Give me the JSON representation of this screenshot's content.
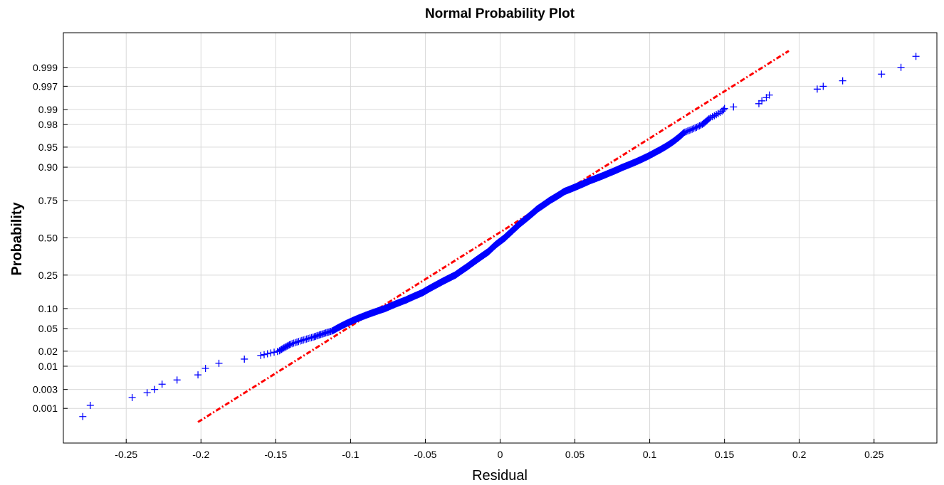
{
  "chart_data": {
    "type": "scatter",
    "title": "Normal Probability Plot",
    "xlabel": "Residual",
    "ylabel": "Probability",
    "xlim": [
      -0.292,
      0.292
    ],
    "ylim_probability": [
      0.0001,
      0.9999
    ],
    "grid": true,
    "y_scale": "normal-probability",
    "colors": {
      "data": "#0000ff",
      "reference_line": "#ff0000"
    },
    "marker": "+",
    "x_ticks": [
      {
        "value": -0.25,
        "label": "-0.25"
      },
      {
        "value": -0.2,
        "label": "-0.2"
      },
      {
        "value": -0.15,
        "label": "-0.15"
      },
      {
        "value": -0.1,
        "label": "-0.1"
      },
      {
        "value": -0.05,
        "label": "-0.05"
      },
      {
        "value": 0,
        "label": "0"
      },
      {
        "value": 0.05,
        "label": "0.05"
      },
      {
        "value": 0.1,
        "label": "0.1"
      },
      {
        "value": 0.15,
        "label": "0.15"
      },
      {
        "value": 0.2,
        "label": "0.2"
      },
      {
        "value": 0.25,
        "label": "0.25"
      }
    ],
    "y_ticks": [
      {
        "value": 0.001,
        "label": "0.001"
      },
      {
        "value": 0.003,
        "label": "0.003"
      },
      {
        "value": 0.01,
        "label": "0.01"
      },
      {
        "value": 0.02,
        "label": "0.02"
      },
      {
        "value": 0.05,
        "label": "0.05"
      },
      {
        "value": 0.1,
        "label": "0.10"
      },
      {
        "value": 0.25,
        "label": "0.25"
      },
      {
        "value": 0.5,
        "label": "0.50"
      },
      {
        "value": 0.75,
        "label": "0.75"
      },
      {
        "value": 0.9,
        "label": "0.90"
      },
      {
        "value": 0.95,
        "label": "0.95"
      },
      {
        "value": 0.98,
        "label": "0.98"
      },
      {
        "value": 0.99,
        "label": "0.99"
      },
      {
        "value": 0.997,
        "label": "0.997"
      },
      {
        "value": 0.999,
        "label": "0.999"
      }
    ],
    "reference_line": {
      "x": [
        -0.202,
        0.193
      ],
      "probability": [
        0.00042,
        0.99965
      ]
    },
    "series": [
      {
        "residual_quantile_anchors": [
          {
            "probability": 0.0006,
            "residual": -0.279
          },
          {
            "probability": 0.0012,
            "residual": -0.274
          },
          {
            "probability": 0.0019,
            "residual": -0.246
          },
          {
            "probability": 0.0025,
            "residual": -0.236
          },
          {
            "probability": 0.003,
            "residual": -0.231
          },
          {
            "probability": 0.004,
            "residual": -0.226
          },
          {
            "probability": 0.005,
            "residual": -0.216
          },
          {
            "probability": 0.0065,
            "residual": -0.202
          },
          {
            "probability": 0.009,
            "residual": -0.197
          },
          {
            "probability": 0.0115,
            "residual": -0.188
          },
          {
            "probability": 0.014,
            "residual": -0.171
          },
          {
            "probability": 0.0165,
            "residual": -0.16
          },
          {
            "probability": 0.02,
            "residual": -0.148
          },
          {
            "probability": 0.027,
            "residual": -0.14
          },
          {
            "probability": 0.036,
            "residual": -0.125
          },
          {
            "probability": 0.046,
            "residual": -0.112
          },
          {
            "probability": 0.06,
            "residual": -0.103
          },
          {
            "probability": 0.08,
            "residual": -0.09
          },
          {
            "probability": 0.1,
            "residual": -0.077
          },
          {
            "probability": 0.13,
            "residual": -0.063
          },
          {
            "probability": 0.16,
            "residual": -0.052
          },
          {
            "probability": 0.2,
            "residual": -0.042
          },
          {
            "probability": 0.25,
            "residual": -0.03
          },
          {
            "probability": 0.3,
            "residual": -0.022
          },
          {
            "probability": 0.35,
            "residual": -0.015
          },
          {
            "probability": 0.4,
            "residual": -0.008
          },
          {
            "probability": 0.45,
            "residual": -0.003
          },
          {
            "probability": 0.5,
            "residual": 0.003
          },
          {
            "probability": 0.55,
            "residual": 0.008
          },
          {
            "probability": 0.6,
            "residual": 0.013
          },
          {
            "probability": 0.65,
            "residual": 0.019
          },
          {
            "probability": 0.7,
            "residual": 0.025
          },
          {
            "probability": 0.75,
            "residual": 0.033
          },
          {
            "probability": 0.8,
            "residual": 0.043
          },
          {
            "probability": 0.85,
            "residual": 0.06
          },
          {
            "probability": 0.88,
            "residual": 0.073
          },
          {
            "probability": 0.9,
            "residual": 0.082
          },
          {
            "probability": 0.92,
            "residual": 0.093
          },
          {
            "probability": 0.94,
            "residual": 0.104
          },
          {
            "probability": 0.96,
            "residual": 0.116
          },
          {
            "probability": 0.972,
            "residual": 0.123
          },
          {
            "probability": 0.98,
            "residual": 0.135
          },
          {
            "probability": 0.985,
            "residual": 0.14
          },
          {
            "probability": 0.988,
            "residual": 0.146
          },
          {
            "probability": 0.9895,
            "residual": 0.149
          },
          {
            "probability": 0.9905,
            "residual": 0.15
          }
        ],
        "n_anchor_fill": 1500,
        "tail_points": [
          {
            "residual": 0.156,
            "probability": 0.9912
          },
          {
            "residual": 0.173,
            "probability": 0.9925
          },
          {
            "residual": 0.175,
            "probability": 0.9935
          },
          {
            "residual": 0.178,
            "probability": 0.9945
          },
          {
            "residual": 0.18,
            "probability": 0.9952
          },
          {
            "residual": 0.212,
            "probability": 0.9965
          },
          {
            "residual": 0.216,
            "probability": 0.997
          },
          {
            "residual": 0.229,
            "probability": 0.9978
          },
          {
            "residual": 0.255,
            "probability": 0.9985
          },
          {
            "residual": 0.268,
            "probability": 0.999
          },
          {
            "residual": 0.278,
            "probability": 0.9995
          }
        ]
      }
    ]
  }
}
